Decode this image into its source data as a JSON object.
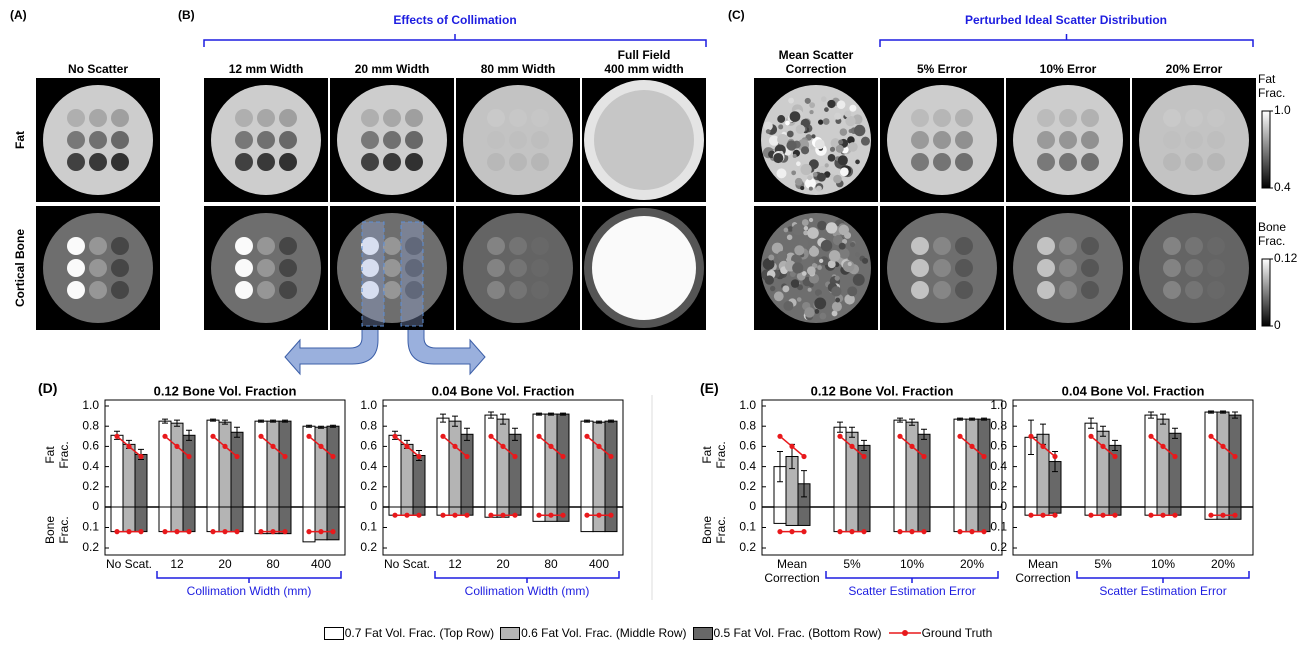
{
  "panels": {
    "a": {
      "label": "(A)",
      "columns": [
        "No Scatter"
      ],
      "rows": [
        "Fat",
        "Cortical Bone"
      ]
    },
    "b": {
      "label": "(B)",
      "title": "Effects of Collimation",
      "columns": [
        "12 mm Width",
        "20 mm Width",
        "80 mm Width",
        "Full Field\n400 mm width"
      ]
    },
    "c": {
      "label": "(C)",
      "title": "Perturbed Ideal Scatter Distribution",
      "columns": [
        "Mean Scatter\nCorrection",
        "5% Error",
        "10% Error",
        "20% Error"
      ]
    },
    "d": {
      "label": "(D)"
    },
    "e": {
      "label": "(E)"
    }
  },
  "colorbars": [
    {
      "label": "Fat\nFrac.",
      "lim": [
        0.4,
        1
      ],
      "ticks": [
        {
          "value": 1,
          "label": "1.0"
        },
        0.4
      ]
    },
    {
      "label": "Bone\nFrac.",
      "lim": [
        0,
        0.12
      ],
      "ticks": [
        0.12,
        0
      ]
    }
  ],
  "chart_data": [
    {
      "type": "bar",
      "title": "0.12 Bone Vol. Fraction",
      "fat_label": "Fat\nFrac.",
      "bone_label": "Bone\nFrac.",
      "categories": [
        "No Scat.",
        "12",
        "20",
        "80",
        "400"
      ],
      "xlabel": "Collimation Width (mm)",
      "ylim": [
        0,
        1
      ],
      "yticks": [
        0,
        0.2,
        0.4,
        0.6,
        0.8,
        {
          "value": 1,
          "label": "1.0"
        }
      ],
      "bone_ylim": [
        0,
        0.2
      ],
      "bone_yticks": [
        0.1,
        0.2
      ],
      "series": [
        {
          "name": "0.7 Fat Vol. Frac. (Top Row)",
          "color": "#ffffff",
          "values": [
            0.71,
            0.85,
            0.86,
            0.85,
            0.8
          ],
          "errors": [
            0.04,
            0.02,
            0.01,
            0.01,
            0.01
          ],
          "bone_values": [
            0.12,
            0.12,
            0.12,
            0.13,
            0.17
          ]
        },
        {
          "name": "0.6 Fat Vol. Frac. (Middle Row)",
          "color": "#b4b4b4",
          "values": [
            0.62,
            0.83,
            0.84,
            0.85,
            0.79
          ],
          "errors": [
            0.04,
            0.03,
            0.02,
            0.01,
            0.01
          ],
          "bone_values": [
            0.12,
            0.12,
            0.12,
            0.13,
            0.16
          ]
        },
        {
          "name": "0.5 Fat Vol. Frac. (Bottom Row)",
          "color": "#686868",
          "values": [
            0.52,
            0.71,
            0.74,
            0.85,
            0.8
          ],
          "errors": [
            0.05,
            0.05,
            0.05,
            0.01,
            0.01
          ],
          "bone_values": [
            0.12,
            0.12,
            0.12,
            0.13,
            0.16
          ]
        }
      ],
      "ground_truth": {
        "name": "Ground Truth",
        "color": "#e8191c",
        "fat": [
          0.7,
          0.6,
          0.5
        ],
        "bone": 0.12
      }
    },
    {
      "type": "bar",
      "title": "0.04 Bone Vol. Fraction",
      "categories": [
        "No Scat.",
        "12",
        "20",
        "80",
        "400"
      ],
      "xlabel": "Collimation Width (mm)",
      "ylim": [
        0,
        1
      ],
      "yticks": [
        0,
        0.2,
        0.4,
        0.6,
        0.8,
        {
          "value": 1,
          "label": "1.0"
        }
      ],
      "bone_ylim": [
        0,
        0.2
      ],
      "bone_yticks": [
        0.1,
        0.2
      ],
      "series": [
        {
          "color": "#ffffff",
          "values": [
            0.71,
            0.88,
            0.91,
            0.92,
            0.85
          ],
          "errors": [
            0.04,
            0.04,
            0.03,
            0.01,
            0.01
          ],
          "bone_values": [
            0.04,
            0.04,
            0.05,
            0.07,
            0.12
          ]
        },
        {
          "color": "#b4b4b4",
          "values": [
            0.62,
            0.85,
            0.87,
            0.92,
            0.84
          ],
          "errors": [
            0.04,
            0.05,
            0.05,
            0.01,
            0.01
          ],
          "bone_values": [
            0.04,
            0.04,
            0.05,
            0.07,
            0.12
          ]
        },
        {
          "color": "#686868",
          "values": [
            0.51,
            0.72,
            0.72,
            0.92,
            0.85
          ],
          "errors": [
            0.05,
            0.06,
            0.06,
            0.01,
            0.01
          ],
          "bone_values": [
            0.04,
            0.04,
            0.04,
            0.07,
            0.12
          ]
        }
      ],
      "ground_truth": {
        "color": "#e8191c",
        "fat": [
          0.7,
          0.6,
          0.5
        ],
        "bone": 0.04
      }
    },
    {
      "type": "bar",
      "title": "0.12 Bone Vol. Fraction",
      "fat_label": "Fat\nFrac.",
      "bone_label": "Bone\nFrac.",
      "categories": [
        "Mean\nCorrection",
        "5%",
        "10%",
        "20%"
      ],
      "xlabel": "Scatter Estimation Error",
      "ylim": [
        0,
        1
      ],
      "yticks": [
        0,
        0.2,
        0.4,
        0.6,
        0.8,
        {
          "value": 1,
          "label": "1.0"
        }
      ],
      "bone_ylim": [
        0,
        0.2
      ],
      "bone_yticks": [
        0.1,
        0.2
      ],
      "series": [
        {
          "color": "#ffffff",
          "values": [
            0.4,
            0.79,
            0.86,
            0.87
          ],
          "errors": [
            0.15,
            0.05,
            0.02,
            0.01
          ],
          "bone_values": [
            0.08,
            0.12,
            0.12,
            0.12
          ]
        },
        {
          "color": "#b4b4b4",
          "values": [
            0.5,
            0.74,
            0.84,
            0.87
          ],
          "errors": [
            0.12,
            0.05,
            0.03,
            0.01
          ],
          "bone_values": [
            0.09,
            0.12,
            0.12,
            0.12
          ]
        },
        {
          "color": "#686868",
          "values": [
            0.23,
            0.61,
            0.72,
            0.87
          ],
          "errors": [
            0.13,
            0.05,
            0.05,
            0.01
          ],
          "bone_values": [
            0.09,
            0.12,
            0.12,
            0.12
          ]
        }
      ],
      "ground_truth": {
        "color": "#e8191c",
        "fat": [
          0.7,
          0.6,
          0.5
        ],
        "bone": 0.12
      }
    },
    {
      "type": "bar",
      "title": "0.04 Bone Vol. Fraction",
      "categories": [
        "Mean\nCorrection",
        "5%",
        "10%",
        "20%"
      ],
      "xlabel": "Scatter Estimation Error",
      "ylim": [
        0,
        1
      ],
      "yticks": [
        0,
        0.2,
        0.4,
        0.6,
        0.8,
        {
          "value": 1,
          "label": "1.0"
        }
      ],
      "bone_ylim": [
        0,
        0.2
      ],
      "bone_yticks": [
        0.1,
        0.2
      ],
      "series": [
        {
          "color": "#ffffff",
          "values": [
            0.69,
            0.83,
            0.91,
            0.94
          ],
          "errors": [
            0.17,
            0.05,
            0.03,
            0.01
          ],
          "bone_values": [
            0.04,
            0.04,
            0.04,
            0.06
          ]
        },
        {
          "color": "#b4b4b4",
          "values": [
            0.72,
            0.75,
            0.87,
            0.94
          ],
          "errors": [
            0.1,
            0.05,
            0.05,
            0.01
          ],
          "bone_values": [
            0.04,
            0.04,
            0.04,
            0.06
          ]
        },
        {
          "color": "#686868",
          "values": [
            0.45,
            0.61,
            0.73,
            0.91
          ],
          "errors": [
            0.1,
            0.05,
            0.05,
            0.03
          ],
          "bone_values": [
            0.03,
            0.04,
            0.04,
            0.06
          ]
        }
      ],
      "ground_truth": {
        "color": "#e8191c",
        "fat": [
          0.7,
          0.6,
          0.5
        ],
        "bone": 0.04
      }
    }
  ]
}
